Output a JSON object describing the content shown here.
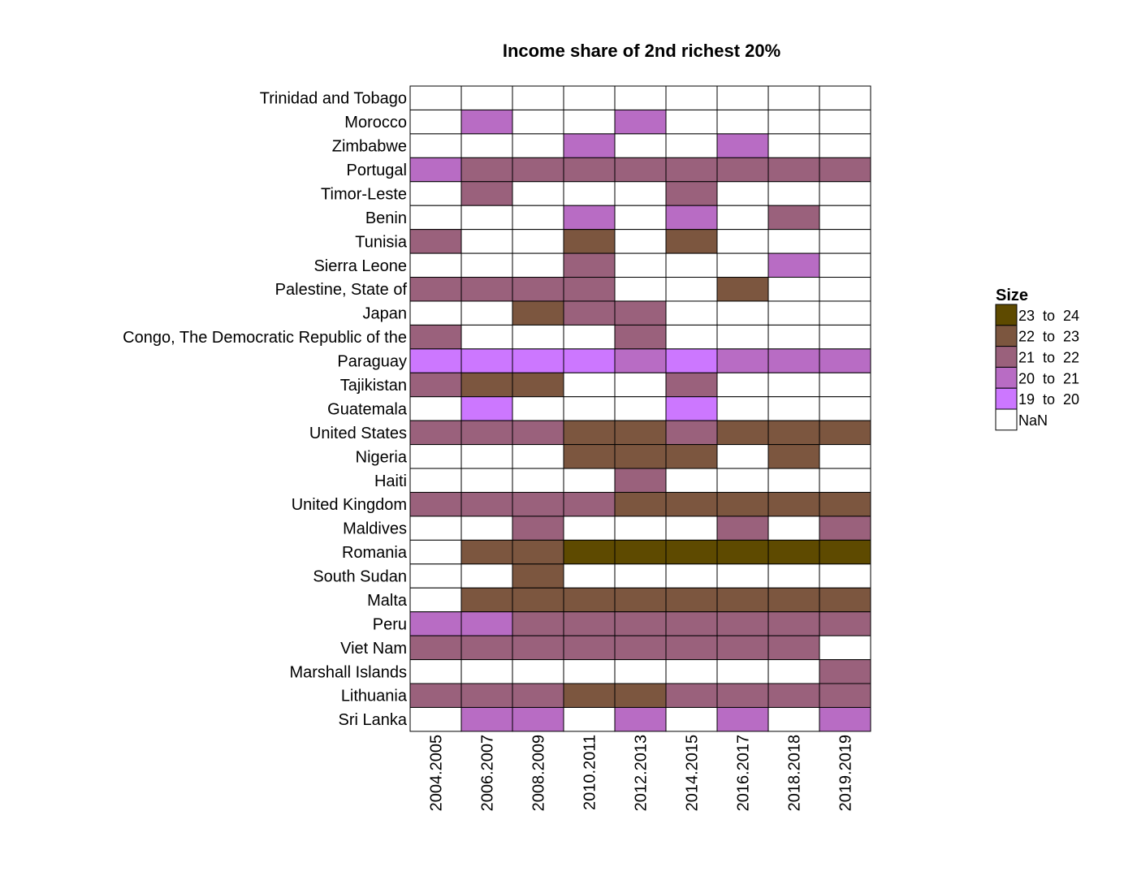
{
  "chart_data": {
    "type": "heatmap",
    "title": "Income share of 2nd richest 20%",
    "xlabel": "",
    "ylabel": "",
    "columns": [
      "2004.2005",
      "2006.2007",
      "2008.2009",
      "2010.2011",
      "2012.2013",
      "2014.2015",
      "2016.2017",
      "2018.2018",
      "2019.2019"
    ],
    "rows": [
      "Trinidad and Tobago",
      "Morocco",
      "Zimbabwe",
      "Portugal",
      "Timor-Leste",
      "Benin",
      "Tunisia",
      "Sierra Leone",
      "Palestine, State of",
      "Japan",
      "Congo, The Democratic Republic of the",
      "Paraguay",
      "Tajikistan",
      "Guatemala",
      "United States",
      "Nigeria",
      "Haiti",
      "United Kingdom",
      "Maldives",
      "Romania",
      "South Sudan",
      "Malta",
      "Peru",
      "Viet Nam",
      "Marshall Islands",
      "Lithuania",
      "Sri Lanka"
    ],
    "bins": [
      "NaN",
      "19 to 20",
      "20 to 21",
      "21 to 22",
      "22 to 23",
      "23 to 24"
    ],
    "bin_colors": [
      "#ffffff",
      "#cc77ff",
      "#b86cc4",
      "#9a617c",
      "#7c563f",
      "#5e4a00"
    ],
    "cells": [
      [
        0,
        0,
        0,
        0,
        0,
        0,
        0,
        0,
        0
      ],
      [
        0,
        2,
        0,
        0,
        2,
        0,
        0,
        0,
        0
      ],
      [
        0,
        0,
        0,
        2,
        0,
        0,
        2,
        0,
        0
      ],
      [
        2,
        3,
        3,
        3,
        3,
        3,
        3,
        3,
        3
      ],
      [
        0,
        3,
        0,
        0,
        0,
        3,
        0,
        0,
        0
      ],
      [
        0,
        0,
        0,
        2,
        0,
        2,
        0,
        3,
        0
      ],
      [
        3,
        0,
        0,
        4,
        0,
        4,
        0,
        0,
        0
      ],
      [
        0,
        0,
        0,
        3,
        0,
        0,
        0,
        2,
        0
      ],
      [
        3,
        3,
        3,
        3,
        0,
        0,
        4,
        0,
        0
      ],
      [
        0,
        0,
        4,
        3,
        3,
        0,
        0,
        0,
        0
      ],
      [
        3,
        0,
        0,
        0,
        3,
        0,
        0,
        0,
        0
      ],
      [
        1,
        1,
        1,
        1,
        2,
        1,
        2,
        2,
        2
      ],
      [
        3,
        4,
        4,
        0,
        0,
        3,
        0,
        0,
        0
      ],
      [
        0,
        1,
        0,
        0,
        0,
        1,
        0,
        0,
        0
      ],
      [
        3,
        3,
        3,
        4,
        4,
        3,
        4,
        4,
        4
      ],
      [
        0,
        0,
        0,
        4,
        4,
        4,
        0,
        4,
        0
      ],
      [
        0,
        0,
        0,
        0,
        3,
        0,
        0,
        0,
        0
      ],
      [
        3,
        3,
        3,
        3,
        4,
        4,
        4,
        4,
        4
      ],
      [
        0,
        0,
        3,
        0,
        0,
        0,
        3,
        0,
        3
      ],
      [
        0,
        4,
        4,
        5,
        5,
        5,
        5,
        5,
        5
      ],
      [
        0,
        0,
        4,
        0,
        0,
        0,
        0,
        0,
        0
      ],
      [
        0,
        4,
        4,
        4,
        4,
        4,
        4,
        4,
        4
      ],
      [
        2,
        2,
        3,
        3,
        3,
        3,
        3,
        3,
        3
      ],
      [
        3,
        3,
        3,
        3,
        3,
        3,
        3,
        3,
        0
      ],
      [
        0,
        0,
        0,
        0,
        0,
        0,
        0,
        0,
        3
      ],
      [
        3,
        3,
        3,
        4,
        4,
        3,
        3,
        3,
        3
      ],
      [
        0,
        2,
        2,
        0,
        2,
        0,
        2,
        0,
        2
      ]
    ],
    "legend": {
      "title": "Size",
      "placement": "right",
      "entries": [
        {
          "label": "23  to  24",
          "bin": 5
        },
        {
          "label": "22  to  23",
          "bin": 4
        },
        {
          "label": "21  to  22",
          "bin": 3
        },
        {
          "label": "20  to  21",
          "bin": 2
        },
        {
          "label": "19  to  20",
          "bin": 1
        },
        {
          "label": "NaN",
          "bin": 0
        }
      ]
    },
    "grid": true
  }
}
